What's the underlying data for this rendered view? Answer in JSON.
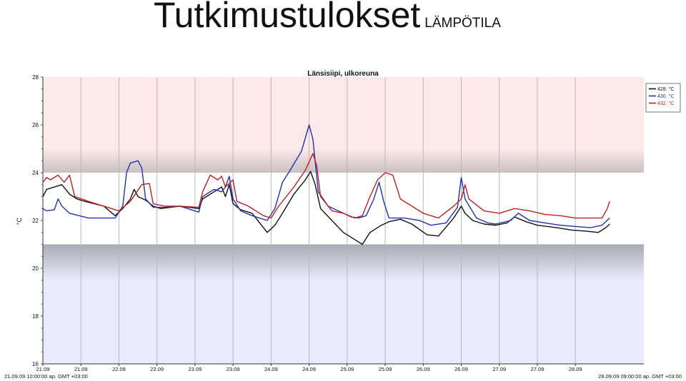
{
  "slide": {
    "title": "Tutkimustulokset",
    "subtitle": "LÄMPÖTILA"
  },
  "chart_data": {
    "type": "line",
    "title": "Länsisiipi, ulkoreuna",
    "ylabel": "°C",
    "ylim": [
      16,
      28
    ],
    "y_ticks": [
      16,
      18,
      20,
      22,
      24,
      26,
      28
    ],
    "x_range": [
      21.0,
      28.9
    ],
    "x_tick_labels": [
      {
        "x": 21.0,
        "label": "21.09"
      },
      {
        "x": 21.5,
        "label": "21.09"
      },
      {
        "x": 22.0,
        "label": "22.09"
      },
      {
        "x": 22.5,
        "label": "22.09"
      },
      {
        "x": 23.0,
        "label": "23.09"
      },
      {
        "x": 23.5,
        "label": "23.09"
      },
      {
        "x": 24.0,
        "label": "24.09"
      },
      {
        "x": 24.5,
        "label": "24.09"
      },
      {
        "x": 25.0,
        "label": "25.09"
      },
      {
        "x": 25.5,
        "label": "25.09"
      },
      {
        "x": 26.0,
        "label": "26.09"
      },
      {
        "x": 26.5,
        "label": "26.09"
      },
      {
        "x": 27.0,
        "label": "27.09"
      },
      {
        "x": 27.5,
        "label": "27.09"
      },
      {
        "x": 28.0,
        "label": "28.09"
      }
    ],
    "start_label": "21.09.09 10:00:00 ap. GMT +03:00",
    "end_label": "28.09.09 09:00:00 ap. GMT +03:00",
    "bands": [
      {
        "from": 24,
        "to": 28,
        "color": "#fde8ea"
      },
      {
        "from": 16,
        "to": 21,
        "color": "#e9ebfc"
      }
    ],
    "legend_position": "top-right",
    "series": [
      {
        "name": "428. °C",
        "color": "#111111",
        "points": [
          [
            21.0,
            23.0
          ],
          [
            21.05,
            23.3
          ],
          [
            21.15,
            23.4
          ],
          [
            21.25,
            23.5
          ],
          [
            21.3,
            23.3
          ],
          [
            21.35,
            23.1
          ],
          [
            21.45,
            22.9
          ],
          [
            21.55,
            22.8
          ],
          [
            21.8,
            22.6
          ],
          [
            21.95,
            22.2
          ],
          [
            22.05,
            22.5
          ],
          [
            22.15,
            22.9
          ],
          [
            22.2,
            23.3
          ],
          [
            22.25,
            23.0
          ],
          [
            22.35,
            22.85
          ],
          [
            22.45,
            22.6
          ],
          [
            22.55,
            22.5
          ],
          [
            22.8,
            22.6
          ],
          [
            23.05,
            22.5
          ],
          [
            23.1,
            22.9
          ],
          [
            23.25,
            23.2
          ],
          [
            23.35,
            23.4
          ],
          [
            23.4,
            23.0
          ],
          [
            23.45,
            23.5
          ],
          [
            23.5,
            22.7
          ],
          [
            23.6,
            22.45
          ],
          [
            23.75,
            22.3
          ],
          [
            23.85,
            21.9
          ],
          [
            23.95,
            21.5
          ],
          [
            24.05,
            21.8
          ],
          [
            24.15,
            22.3
          ],
          [
            24.3,
            23.1
          ],
          [
            24.45,
            23.7
          ],
          [
            24.52,
            24.05
          ],
          [
            24.58,
            23.5
          ],
          [
            24.65,
            22.5
          ],
          [
            24.8,
            22.0
          ],
          [
            24.95,
            21.5
          ],
          [
            25.1,
            21.2
          ],
          [
            25.2,
            21.0
          ],
          [
            25.3,
            21.5
          ],
          [
            25.45,
            21.8
          ],
          [
            25.55,
            21.95
          ],
          [
            25.7,
            22.05
          ],
          [
            25.85,
            21.85
          ],
          [
            26.05,
            21.4
          ],
          [
            26.2,
            21.35
          ],
          [
            26.4,
            22.1
          ],
          [
            26.5,
            22.6
          ],
          [
            26.55,
            22.3
          ],
          [
            26.65,
            22.0
          ],
          [
            26.8,
            21.85
          ],
          [
            26.95,
            21.8
          ],
          [
            27.1,
            21.9
          ],
          [
            27.2,
            22.15
          ],
          [
            27.35,
            21.95
          ],
          [
            27.5,
            21.8
          ],
          [
            27.75,
            21.7
          ],
          [
            27.95,
            21.6
          ],
          [
            28.15,
            21.55
          ],
          [
            28.3,
            21.5
          ],
          [
            28.4,
            21.7
          ],
          [
            28.45,
            21.85
          ]
        ]
      },
      {
        "name": "430. °C",
        "color": "#2233aa",
        "points": [
          [
            21.0,
            22.5
          ],
          [
            21.05,
            22.4
          ],
          [
            21.15,
            22.45
          ],
          [
            21.2,
            22.9
          ],
          [
            21.25,
            22.6
          ],
          [
            21.35,
            22.3
          ],
          [
            21.6,
            22.1
          ],
          [
            21.95,
            22.1
          ],
          [
            22.05,
            22.6
          ],
          [
            22.1,
            24.0
          ],
          [
            22.15,
            24.4
          ],
          [
            22.25,
            24.5
          ],
          [
            22.3,
            24.2
          ],
          [
            22.35,
            22.9
          ],
          [
            22.45,
            22.55
          ],
          [
            22.6,
            22.55
          ],
          [
            22.8,
            22.6
          ],
          [
            23.05,
            22.35
          ],
          [
            23.1,
            23.0
          ],
          [
            23.25,
            23.3
          ],
          [
            23.35,
            23.2
          ],
          [
            23.4,
            23.4
          ],
          [
            23.45,
            23.85
          ],
          [
            23.5,
            22.9
          ],
          [
            23.6,
            22.4
          ],
          [
            23.75,
            22.2
          ],
          [
            23.95,
            22.0
          ],
          [
            24.05,
            22.5
          ],
          [
            24.15,
            23.6
          ],
          [
            24.25,
            24.1
          ],
          [
            24.4,
            24.9
          ],
          [
            24.5,
            26.0
          ],
          [
            24.55,
            25.4
          ],
          [
            24.62,
            23.2
          ],
          [
            24.75,
            22.6
          ],
          [
            24.95,
            22.3
          ],
          [
            25.05,
            22.15
          ],
          [
            25.15,
            22.1
          ],
          [
            25.25,
            22.2
          ],
          [
            25.35,
            22.9
          ],
          [
            25.42,
            23.6
          ],
          [
            25.48,
            22.8
          ],
          [
            25.55,
            22.1
          ],
          [
            25.75,
            22.1
          ],
          [
            25.95,
            22.0
          ],
          [
            26.1,
            21.8
          ],
          [
            26.3,
            21.9
          ],
          [
            26.45,
            22.55
          ],
          [
            26.5,
            23.8
          ],
          [
            26.55,
            22.9
          ],
          [
            26.7,
            22.1
          ],
          [
            26.85,
            21.9
          ],
          [
            26.95,
            21.85
          ],
          [
            27.15,
            22.0
          ],
          [
            27.25,
            22.3
          ],
          [
            27.4,
            22.0
          ],
          [
            27.6,
            21.9
          ],
          [
            27.8,
            21.8
          ],
          [
            28.0,
            21.75
          ],
          [
            28.2,
            21.7
          ],
          [
            28.35,
            21.8
          ],
          [
            28.45,
            22.1
          ]
        ]
      },
      {
        "name": "432. °C",
        "color": "#bb2222",
        "points": [
          [
            21.0,
            23.6
          ],
          [
            21.05,
            23.8
          ],
          [
            21.1,
            23.7
          ],
          [
            21.2,
            23.9
          ],
          [
            21.28,
            23.6
          ],
          [
            21.35,
            23.9
          ],
          [
            21.38,
            23.5
          ],
          [
            21.42,
            23.0
          ],
          [
            21.6,
            22.8
          ],
          [
            21.8,
            22.6
          ],
          [
            22.0,
            22.4
          ],
          [
            22.15,
            22.8
          ],
          [
            22.3,
            23.5
          ],
          [
            22.4,
            23.55
          ],
          [
            22.45,
            22.7
          ],
          [
            22.6,
            22.6
          ],
          [
            22.8,
            22.6
          ],
          [
            23.05,
            22.55
          ],
          [
            23.1,
            23.2
          ],
          [
            23.2,
            23.9
          ],
          [
            23.3,
            23.7
          ],
          [
            23.35,
            23.85
          ],
          [
            23.4,
            23.4
          ],
          [
            23.5,
            23.7
          ],
          [
            23.55,
            22.8
          ],
          [
            23.7,
            22.6
          ],
          [
            23.9,
            22.2
          ],
          [
            24.0,
            22.1
          ],
          [
            24.1,
            22.6
          ],
          [
            24.3,
            23.4
          ],
          [
            24.45,
            24.1
          ],
          [
            24.55,
            24.8
          ],
          [
            24.6,
            24.3
          ],
          [
            24.65,
            23.0
          ],
          [
            24.8,
            22.4
          ],
          [
            24.95,
            22.3
          ],
          [
            25.1,
            22.1
          ],
          [
            25.2,
            22.2
          ],
          [
            25.3,
            23.0
          ],
          [
            25.4,
            23.7
          ],
          [
            25.5,
            24.0
          ],
          [
            25.6,
            23.9
          ],
          [
            25.7,
            22.9
          ],
          [
            25.85,
            22.6
          ],
          [
            26.0,
            22.3
          ],
          [
            26.2,
            22.1
          ],
          [
            26.4,
            22.6
          ],
          [
            26.5,
            22.9
          ],
          [
            26.55,
            23.5
          ],
          [
            26.6,
            22.9
          ],
          [
            26.8,
            22.4
          ],
          [
            27.0,
            22.3
          ],
          [
            27.2,
            22.5
          ],
          [
            27.4,
            22.4
          ],
          [
            27.6,
            22.25
          ],
          [
            27.8,
            22.2
          ],
          [
            28.0,
            22.1
          ],
          [
            28.35,
            22.1
          ],
          [
            28.42,
            22.5
          ],
          [
            28.45,
            22.8
          ]
        ]
      }
    ]
  }
}
